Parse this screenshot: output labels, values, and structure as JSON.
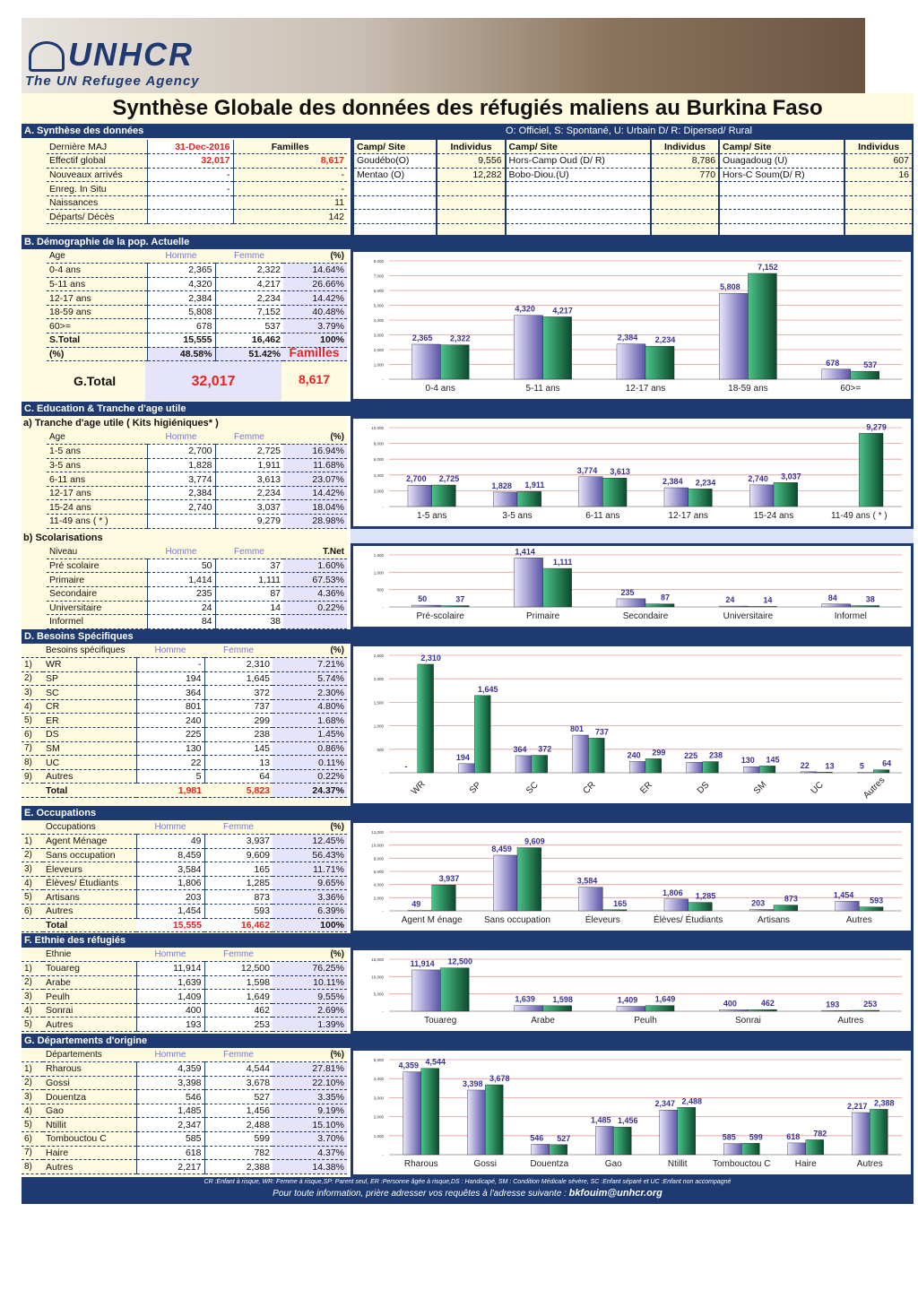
{
  "header": {
    "logo": "UNHCR",
    "tagline": "The UN Refugee Agency",
    "title": "Synthèse Globale des données des réfugiés maliens au Burkina Faso"
  },
  "secA": {
    "title": "A. Synthèse des données",
    "legend": "O: Officiel, S: Spontané, U: Urbain D/ R: Dipersed/ Rural",
    "rows": [
      [
        "Dernière MAJ",
        "31-Dec-2016",
        "Familles"
      ],
      [
        "Effectif global",
        "32,017",
        "8,617"
      ],
      [
        "Nouveaux arrivés",
        "-",
        "-"
      ],
      [
        "Enreg. In Situ",
        "-",
        "-"
      ],
      [
        "Naissances",
        "",
        "11"
      ],
      [
        "Départs/ Décès",
        "",
        "142"
      ]
    ],
    "camp_headers": [
      "Camp/ Site",
      "Individus",
      "Camp/ Site",
      "Individus",
      "Camp/ Site",
      "Individus"
    ],
    "camps": [
      [
        "Goudébo(O)",
        "9,556",
        "Hors-Camp Oud (D/ R)",
        "8,786",
        "Ouagadoug (U)",
        "607"
      ],
      [
        "Mentao (O)",
        "12,282",
        "Bobo-Diou.(U)",
        "770",
        "Hors-C Soum(D/ R)",
        "16"
      ]
    ]
  },
  "secB": {
    "title": "B. Démographie de la pop. Actuelle",
    "headers": [
      "Age",
      "Homme",
      "Femme",
      "(%)"
    ],
    "rows": [
      [
        "0-4 ans",
        "2,365",
        "2,322",
        "14.64%"
      ],
      [
        "5-11 ans",
        "4,320",
        "4,217",
        "26.66%"
      ],
      [
        "12-17 ans",
        "2,384",
        "2,234",
        "14.42%"
      ],
      [
        "18-59 ans",
        "5,808",
        "7,152",
        "40.48%"
      ],
      [
        "60>=",
        "678",
        "537",
        "3.79%"
      ],
      [
        "S.Total",
        "15,555",
        "16,462",
        "100%"
      ],
      [
        "(%)",
        "48.58%",
        "51.42%",
        ""
      ]
    ],
    "gtotal_label": "G.Total",
    "gtotal": "32,017",
    "familles_label": "Familles",
    "familles": "8,617"
  },
  "secC": {
    "title": "C. Education & Tranche d'age utile",
    "sub_a": "a) Tranche d'age utile ( Kits higiéniques* )",
    "headers": [
      "Age",
      "Homme",
      "Femme",
      "(%)"
    ],
    "rows": [
      [
        "1-5 ans",
        "2,700",
        "2,725",
        "16.94%"
      ],
      [
        "3-5 ans",
        "1,828",
        "1,911",
        "11.68%"
      ],
      [
        "6-11 ans",
        "3,774",
        "3,613",
        "23.07%"
      ],
      [
        "12-17 ans",
        "2,384",
        "2,234",
        "14.42%"
      ],
      [
        "15-24 ans",
        "2,740",
        "3,037",
        "18.04%"
      ],
      [
        "11-49 ans ( * )",
        "",
        "9,279",
        "28.98%"
      ]
    ],
    "sub_b": "b) Scolarisations",
    "headers_b": [
      "Niveau",
      "Homme",
      "Femme",
      "T.Net"
    ],
    "rows_b": [
      [
        "Pré scolaire",
        "50",
        "37",
        "1.60%"
      ],
      [
        "Primaire",
        "1,414",
        "1,111",
        "67.53%"
      ],
      [
        "Secondaire",
        "235",
        "87",
        "4.36%"
      ],
      [
        "Universitaire",
        "24",
        "14",
        "0.22%"
      ],
      [
        "Informel",
        "84",
        "38",
        ""
      ]
    ]
  },
  "secD": {
    "title": "D. Besoins Spécifiques",
    "headers": [
      "Besoins spécifiques",
      "Homme",
      "Femme",
      "(%)"
    ],
    "rows": [
      [
        "1)",
        "WR",
        "-",
        "2,310",
        "7.21%"
      ],
      [
        "2)",
        "SP",
        "194",
        "1,645",
        "5.74%"
      ],
      [
        "3)",
        "SC",
        "364",
        "372",
        "2.30%"
      ],
      [
        "4)",
        "CR",
        "801",
        "737",
        "4.80%"
      ],
      [
        "5)",
        "ER",
        "240",
        "299",
        "1.68%"
      ],
      [
        "6)",
        "DS",
        "225",
        "238",
        "1.45%"
      ],
      [
        "7)",
        "SM",
        "130",
        "145",
        "0.86%"
      ],
      [
        "8)",
        "UC",
        "22",
        "13",
        "0.11%"
      ],
      [
        "9)",
        "Autres",
        "5",
        "64",
        "0.22%"
      ]
    ],
    "total": [
      "Total",
      "1,981",
      "5,823",
      "24.37%"
    ]
  },
  "secE": {
    "title": "E. Occupations",
    "headers": [
      "Occupations",
      "Homme",
      "Femme",
      "(%)"
    ],
    "rows": [
      [
        "1)",
        "Agent Ménage",
        "49",
        "3,937",
        "12.45%"
      ],
      [
        "2)",
        "Sans occupation",
        "8,459",
        "9,609",
        "56.43%"
      ],
      [
        "3)",
        "Éleveurs",
        "3,584",
        "165",
        "11.71%"
      ],
      [
        "4)",
        "Élèves/ Étudiants",
        "1,806",
        "1,285",
        "9.65%"
      ],
      [
        "5)",
        "Artisans",
        "203",
        "873",
        "3.36%"
      ],
      [
        "6)",
        "Autres",
        "1,454",
        "593",
        "6.39%"
      ]
    ],
    "total": [
      "Total",
      "15,555",
      "16,462",
      "100%"
    ]
  },
  "secF": {
    "title": "F. Ethnie des réfugiés",
    "headers": [
      "Ethnie",
      "Homme",
      "Femme",
      "(%)"
    ],
    "rows": [
      [
        "1)",
        "Touareg",
        "11,914",
        "12,500",
        "76.25%"
      ],
      [
        "2)",
        "Arabe",
        "1,639",
        "1,598",
        "10.11%"
      ],
      [
        "3)",
        "Peulh",
        "1,409",
        "1,649",
        "9.55%"
      ],
      [
        "4)",
        "Sonrai",
        "400",
        "462",
        "2.69%"
      ],
      [
        "5)",
        "Autres",
        "193",
        "253",
        "1.39%"
      ]
    ]
  },
  "secG": {
    "title": "G. Départements d'origine",
    "headers": [
      "Départements",
      "Homme",
      "Femme",
      "(%)"
    ],
    "rows": [
      [
        "1)",
        "Rharous",
        "4,359",
        "4,544",
        "27.81%"
      ],
      [
        "2)",
        "Gossi",
        "3,398",
        "3,678",
        "22.10%"
      ],
      [
        "3)",
        "Douentza",
        "546",
        "527",
        "3.35%"
      ],
      [
        "4)",
        "Gao",
        "1,485",
        "1,456",
        "9.19%"
      ],
      [
        "5)",
        "Ntillit",
        "2,347",
        "2,488",
        "15.10%"
      ],
      [
        "6)",
        "Tombouctou C",
        "585",
        "599",
        "3.70%"
      ],
      [
        "7)",
        "Haire",
        "618",
        "782",
        "4.37%"
      ],
      [
        "8)",
        "Autres",
        "2,217",
        "2,388",
        "14.38%"
      ]
    ]
  },
  "footer": {
    "abbrev": "CR :Enfant à risque, WR: Femme à risque,SP: Parent seul, ER :Personne âgée à risque,DS : Handicapé, SM : Condition Médicale sévère, SC :Enfant séparé et UC :Enfant non accompagné",
    "contact_text": "Pour toute information, prière adresser vos requêtes à l'adresse suivante :",
    "email": "bkfouim@unhcr.org"
  },
  "colors": {
    "navy": "#1f3a70",
    "cream": "#fffbe0",
    "homme": "#b5b0e0",
    "femme": "#1c7a4c",
    "red": "#e52421"
  },
  "chart_data": [
    {
      "type": "bar",
      "id": "B",
      "categories": [
        "0-4 ans",
        "5-11 ans",
        "12-17 ans",
        "18-59 ans",
        "60>="
      ],
      "series": [
        {
          "values": [
            2365,
            4320,
            2384,
            5808,
            678
          ]
        },
        {
          "values": [
            2322,
            4217,
            2234,
            7152,
            537
          ]
        }
      ],
      "labels": [
        [
          "2,365",
          "4,320",
          "2,384",
          "5,808",
          "678"
        ],
        [
          "2,322",
          "4,217",
          "2,234",
          "7,152",
          "537"
        ]
      ],
      "ylim": [
        0,
        8000
      ],
      "ticks": [
        "8,000",
        "7,000",
        "6,000",
        "5,000",
        "4,000",
        "3,000",
        "2,000",
        "1,000",
        "-"
      ]
    },
    {
      "type": "bar",
      "id": "C",
      "categories": [
        "1-5 ans",
        "3-5 ans",
        "6-11 ans",
        "12-17 ans",
        "15-24 ans",
        "11-49 ans ( * )"
      ],
      "series": [
        {
          "values": [
            2700,
            1828,
            3774,
            2384,
            2740,
            0
          ]
        },
        {
          "values": [
            2725,
            1911,
            3613,
            2234,
            3037,
            9279
          ]
        }
      ],
      "labels": [
        [
          "2,700",
          "1,828",
          "3,774",
          "2,384",
          "2,740",
          ""
        ],
        [
          "2,725",
          "1,911",
          "3,613",
          "2,234",
          "3,037",
          "9,279"
        ]
      ],
      "ylim": [
        0,
        10000
      ],
      "ticks": [
        "10,000",
        "8,000",
        "6,000",
        "4,000",
        "2,000",
        "-"
      ]
    },
    {
      "type": "bar",
      "id": "Cb",
      "categories": [
        "Pré-scolaire",
        "Primaire",
        "Secondaire",
        "Universitaire",
        "Informel"
      ],
      "series": [
        {
          "values": [
            50,
            1414,
            235,
            24,
            84
          ]
        },
        {
          "values": [
            37,
            1111,
            87,
            14,
            38
          ]
        }
      ],
      "labels": [
        [
          "50",
          "1,414",
          "235",
          "24",
          "84"
        ],
        [
          "37",
          "1,111",
          "87",
          "14",
          "38"
        ]
      ],
      "ylim": [
        0,
        1500
      ],
      "ticks": [
        "1,500",
        "1,000",
        "500",
        "-"
      ]
    },
    {
      "type": "bar",
      "id": "D",
      "rotate": true,
      "categories": [
        "WR",
        "SP",
        "SC",
        "CR",
        "ER",
        "DS",
        "SM",
        "UC",
        "Autres"
      ],
      "series": [
        {
          "values": [
            0,
            194,
            364,
            801,
            240,
            225,
            130,
            22,
            5
          ]
        },
        {
          "values": [
            2310,
            1645,
            372,
            737,
            299,
            238,
            145,
            13,
            64
          ]
        }
      ],
      "labels": [
        [
          "-",
          "194",
          "364",
          "801",
          "240",
          "225",
          "130",
          "22",
          "5"
        ],
        [
          "2,310",
          "1,645",
          "372",
          "737",
          "299",
          "238",
          "145",
          "13",
          "64"
        ]
      ],
      "ylim": [
        0,
        2500
      ],
      "ticks": [
        "2,500",
        "2,000",
        "1,500",
        "1,000",
        "500",
        "-"
      ]
    },
    {
      "type": "bar",
      "id": "E",
      "categories": [
        "Agent M énage",
        "Sans occupation",
        "Éleveurs",
        "Élèves/ Étudiants",
        "Artisans",
        "Autres"
      ],
      "series": [
        {
          "values": [
            49,
            8459,
            3584,
            1806,
            203,
            1454
          ]
        },
        {
          "values": [
            3937,
            9609,
            165,
            1285,
            873,
            593
          ]
        }
      ],
      "labels": [
        [
          "49",
          "8,459",
          "3,584",
          "1,806",
          "203",
          "1,454"
        ],
        [
          "3,937",
          "9,609",
          "165",
          "1,285",
          "873",
          "593"
        ]
      ],
      "ylim": [
        0,
        12000
      ],
      "ticks": [
        "12,000",
        "10,000",
        "8,000",
        "6,000",
        "4,000",
        "2,000",
        "-"
      ]
    },
    {
      "type": "bar",
      "id": "F",
      "categories": [
        "Touareg",
        "Arabe",
        "Peulh",
        "Sonrai",
        "Autres"
      ],
      "series": [
        {
          "values": [
            11914,
            1639,
            1409,
            400,
            193
          ]
        },
        {
          "values": [
            12500,
            1598,
            1649,
            462,
            253
          ]
        }
      ],
      "labels": [
        [
          "11,914",
          "1,639",
          "1,409",
          "400",
          "193"
        ],
        [
          "12,500",
          "1,598",
          "1,649",
          "462",
          "253"
        ]
      ],
      "ylim": [
        0,
        15000
      ],
      "ticks": [
        "15,000",
        "10,000",
        "5,000",
        "-"
      ]
    },
    {
      "type": "bar",
      "id": "G",
      "categories": [
        "Rharous",
        "Gossi",
        "Douentza",
        "Gao",
        "Ntillit",
        "Tombouctou C",
        "Haire",
        "Autres"
      ],
      "series": [
        {
          "values": [
            4359,
            3398,
            546,
            1485,
            2347,
            585,
            618,
            2217
          ]
        },
        {
          "values": [
            4544,
            3678,
            527,
            1456,
            2488,
            599,
            782,
            2388
          ]
        }
      ],
      "labels": [
        [
          "4,359",
          "3,398",
          "546",
          "1,485",
          "2,347",
          "585",
          "618",
          "2,217"
        ],
        [
          "4,544",
          "3,678",
          "527",
          "1,456",
          "2,488",
          "599",
          "782",
          "2,388"
        ]
      ],
      "ylim": [
        0,
        5000
      ],
      "ticks": [
        "5,000",
        "4,000",
        "3,000",
        "2,000",
        "1,000",
        "-"
      ]
    }
  ]
}
